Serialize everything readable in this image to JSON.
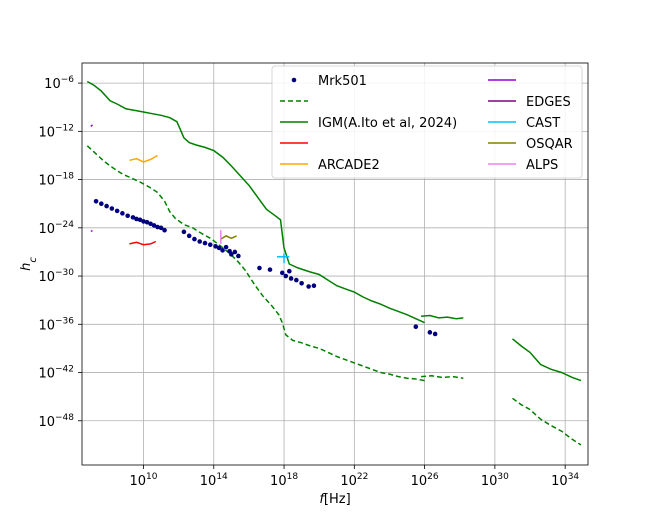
{
  "chart_data": {
    "type": "line",
    "title": "",
    "xlabel": "f[Hz]",
    "xlabel_math": "f",
    "xlabel_unit": "[Hz]",
    "ylabel": "h_c",
    "xscale": "log",
    "yscale": "log",
    "xlim_log10": [
      6.5,
      35.3
    ],
    "ylim_log10": [
      -53.5,
      -3.5
    ],
    "grid": true,
    "legend_position": "top-right",
    "x_ticks": [
      {
        "base": "10",
        "exp": "10",
        "log10": 10
      },
      {
        "base": "10",
        "exp": "14",
        "log10": 14
      },
      {
        "base": "10",
        "exp": "18",
        "log10": 18
      },
      {
        "base": "10",
        "exp": "22",
        "log10": 22
      },
      {
        "base": "10",
        "exp": "26",
        "log10": 26
      },
      {
        "base": "10",
        "exp": "30",
        "log10": 30
      },
      {
        "base": "10",
        "exp": "34",
        "log10": 34
      }
    ],
    "y_ticks": [
      {
        "base": "10",
        "exp": "−6",
        "log10": -6
      },
      {
        "base": "10",
        "exp": "−12",
        "log10": -12
      },
      {
        "base": "10",
        "exp": "−18",
        "log10": -18
      },
      {
        "base": "10",
        "exp": "−24",
        "log10": -24
      },
      {
        "base": "10",
        "exp": "−30",
        "log10": -30
      },
      {
        "base": "10",
        "exp": "−36",
        "log10": -36
      },
      {
        "base": "10",
        "exp": "−42",
        "log10": -42
      },
      {
        "base": "10",
        "exp": "−48",
        "log10": -48
      }
    ],
    "legend": [
      {
        "label": "Mrk501",
        "color": "#000080",
        "style": "dots"
      },
      {
        "label": "",
        "color": "#008000",
        "style": "dashed"
      },
      {
        "label": "IGM(A.Ito et al, 2024)",
        "color": "#008000",
        "style": "solid"
      },
      {
        "label": "",
        "color": "#ff0000",
        "style": "solid"
      },
      {
        "label": "ARCADE2",
        "color": "#ffa500",
        "style": "solid"
      },
      {
        "label": "",
        "color": "#9400d3",
        "style": "solid"
      },
      {
        "label": "EDGES",
        "color": "#800080",
        "style": "solid"
      },
      {
        "label": "CAST",
        "color": "#00bfff",
        "style": "solid"
      },
      {
        "label": "OSQAR",
        "color": "#808000",
        "style": "solid"
      },
      {
        "label": "ALPS",
        "color": "#ee82ee",
        "style": "solid"
      }
    ],
    "series": [
      {
        "name": "IGM upper",
        "color": "#008000",
        "style": "solid",
        "points": [
          [
            6.8,
            -5.8
          ],
          [
            7.2,
            -6.3
          ],
          [
            7.6,
            -7.0
          ],
          [
            8.1,
            -8.2
          ],
          [
            8.5,
            -8.6
          ],
          [
            9.0,
            -9.2
          ],
          [
            9.5,
            -9.4
          ],
          [
            10.0,
            -9.6
          ],
          [
            10.5,
            -9.8
          ],
          [
            11.0,
            -10.0
          ],
          [
            11.5,
            -10.3
          ],
          [
            11.9,
            -10.8
          ],
          [
            12.1,
            -11.8
          ],
          [
            12.3,
            -12.8
          ],
          [
            12.6,
            -13.4
          ],
          [
            13.0,
            -13.7
          ],
          [
            13.5,
            -14.0
          ],
          [
            14.0,
            -14.4
          ],
          [
            14.5,
            -15.2
          ],
          [
            15.0,
            -16.3
          ],
          [
            15.5,
            -17.5
          ],
          [
            16.0,
            -18.7
          ],
          [
            16.5,
            -20.2
          ],
          [
            17.0,
            -21.7
          ],
          [
            17.5,
            -22.5
          ],
          [
            17.8,
            -23.0
          ],
          [
            18.0,
            -26.5
          ],
          [
            18.3,
            -28.5
          ],
          [
            18.8,
            -29.0
          ],
          [
            19.5,
            -29.5
          ],
          [
            20.0,
            -29.8
          ],
          [
            20.5,
            -30.5
          ],
          [
            21.0,
            -31.2
          ],
          [
            21.5,
            -31.6
          ],
          [
            22.0,
            -32.0
          ],
          [
            22.5,
            -32.6
          ],
          [
            23.0,
            -33.1
          ],
          [
            23.5,
            -33.5
          ],
          [
            24.0,
            -34.0
          ],
          [
            24.5,
            -34.4
          ],
          [
            25.0,
            -34.8
          ],
          [
            25.5,
            -35.3
          ],
          [
            25.8,
            -35.6
          ],
          [
            26.0,
            -35.8
          ]
        ]
      },
      {
        "name": "IGM upper (high-f segment 1)",
        "color": "#008000",
        "style": "solid",
        "points": [
          [
            25.8,
            -35.0
          ],
          [
            26.3,
            -34.9
          ],
          [
            26.8,
            -35.2
          ],
          [
            27.3,
            -35.1
          ],
          [
            27.8,
            -35.3
          ],
          [
            28.2,
            -35.2
          ]
        ]
      },
      {
        "name": "IGM upper (high-f segment 2)",
        "color": "#008000",
        "style": "solid",
        "points": [
          [
            31.0,
            -37.8
          ],
          [
            31.5,
            -38.7
          ],
          [
            32.0,
            -39.5
          ],
          [
            32.6,
            -41.0
          ],
          [
            33.2,
            -41.6
          ],
          [
            33.8,
            -42.0
          ],
          [
            34.4,
            -42.6
          ],
          [
            34.9,
            -43.0
          ]
        ]
      },
      {
        "name": "IGM lower",
        "color": "#008000",
        "style": "dashed",
        "points": [
          [
            6.8,
            -13.8
          ],
          [
            7.3,
            -14.8
          ],
          [
            7.8,
            -15.8
          ],
          [
            8.3,
            -16.6
          ],
          [
            8.8,
            -17.3
          ],
          [
            9.3,
            -17.8
          ],
          [
            9.8,
            -18.3
          ],
          [
            10.3,
            -18.9
          ],
          [
            10.8,
            -19.6
          ],
          [
            11.2,
            -20.7
          ],
          [
            11.5,
            -22.0
          ],
          [
            11.8,
            -22.8
          ],
          [
            12.3,
            -23.6
          ],
          [
            12.8,
            -24.0
          ],
          [
            13.3,
            -24.7
          ],
          [
            13.8,
            -25.3
          ],
          [
            14.3,
            -26.1
          ],
          [
            14.8,
            -27.0
          ],
          [
            15.3,
            -28.0
          ],
          [
            15.8,
            -29.3
          ],
          [
            16.3,
            -31.0
          ],
          [
            16.8,
            -32.5
          ],
          [
            17.3,
            -33.7
          ],
          [
            17.7,
            -34.8
          ],
          [
            17.9,
            -35.8
          ],
          [
            18.1,
            -37.3
          ],
          [
            18.5,
            -38.0
          ],
          [
            19.0,
            -38.3
          ],
          [
            19.5,
            -38.7
          ],
          [
            20.0,
            -39.0
          ],
          [
            20.5,
            -39.5
          ],
          [
            21.0,
            -40.0
          ],
          [
            21.5,
            -40.4
          ],
          [
            22.0,
            -40.8
          ],
          [
            22.5,
            -41.2
          ],
          [
            23.0,
            -41.6
          ],
          [
            23.5,
            -42.0
          ],
          [
            24.0,
            -42.2
          ],
          [
            24.5,
            -42.5
          ],
          [
            25.0,
            -42.7
          ],
          [
            25.5,
            -42.8
          ],
          [
            26.0,
            -43.0
          ]
        ]
      },
      {
        "name": "IGM lower (high-f segment 1)",
        "color": "#008000",
        "style": "dashed",
        "points": [
          [
            25.8,
            -42.5
          ],
          [
            26.4,
            -42.4
          ],
          [
            27.0,
            -42.6
          ],
          [
            27.6,
            -42.5
          ],
          [
            28.2,
            -42.7
          ]
        ]
      },
      {
        "name": "IGM lower (high-f segment 2)",
        "color": "#008000",
        "style": "dashed",
        "points": [
          [
            31.0,
            -45.2
          ],
          [
            31.5,
            -46.0
          ],
          [
            32.0,
            -46.6
          ],
          [
            32.6,
            -47.8
          ],
          [
            33.2,
            -48.6
          ],
          [
            33.8,
            -49.3
          ],
          [
            34.4,
            -50.3
          ],
          [
            34.9,
            -51.0
          ]
        ]
      },
      {
        "name": "red",
        "color": "#ff0000",
        "style": "solid",
        "points": [
          [
            9.2,
            -26.0
          ],
          [
            9.6,
            -25.8
          ],
          [
            10.0,
            -26.1
          ],
          [
            10.4,
            -26.0
          ],
          [
            10.7,
            -25.7
          ]
        ]
      },
      {
        "name": "ARCADE2",
        "color": "#ffa500",
        "style": "solid",
        "points": [
          [
            9.2,
            -15.6
          ],
          [
            9.6,
            -15.4
          ],
          [
            10.0,
            -15.8
          ],
          [
            10.4,
            -15.5
          ],
          [
            10.8,
            -15.0
          ]
        ]
      },
      {
        "name": "violet",
        "color": "#9400d3",
        "style": "solid",
        "points": [
          [
            7.0,
            -11.4
          ],
          [
            7.1,
            -11.2
          ]
        ]
      },
      {
        "name": "violet low",
        "color": "#9400d3",
        "style": "solid",
        "points": [
          [
            7.0,
            -24.4
          ],
          [
            7.1,
            -24.4
          ]
        ]
      },
      {
        "name": "CAST",
        "color": "#00bfff",
        "style": "solid",
        "points": [
          [
            17.6,
            -27.6
          ],
          [
            18.3,
            -27.6
          ]
        ]
      },
      {
        "name": "CAST vertical",
        "color": "#00bfff",
        "style": "solid",
        "points": [
          [
            18.0,
            -27.2
          ],
          [
            18.0,
            -28.4
          ]
        ]
      },
      {
        "name": "OSQAR",
        "color": "#808000",
        "style": "solid",
        "points": [
          [
            14.4,
            -25.4
          ],
          [
            14.7,
            -25.0
          ],
          [
            15.0,
            -25.3
          ],
          [
            15.3,
            -25.0
          ]
        ]
      },
      {
        "name": "ALPS",
        "color": "#ee82ee",
        "style": "solid",
        "points": [
          [
            14.4,
            -24.3
          ],
          [
            14.4,
            -26.0
          ]
        ]
      },
      {
        "name": "Mrk501",
        "color": "#000080",
        "style": "dots",
        "points": [
          [
            7.3,
            -20.7
          ],
          [
            7.6,
            -21.0
          ],
          [
            7.9,
            -21.3
          ],
          [
            8.2,
            -21.6
          ],
          [
            8.5,
            -21.9
          ],
          [
            8.8,
            -22.2
          ],
          [
            9.1,
            -22.5
          ],
          [
            9.4,
            -22.7
          ],
          [
            9.6,
            -22.9
          ],
          [
            9.8,
            -23.0
          ],
          [
            10.0,
            -23.2
          ],
          [
            10.2,
            -23.3
          ],
          [
            10.4,
            -23.5
          ],
          [
            10.6,
            -23.7
          ],
          [
            10.8,
            -23.9
          ],
          [
            11.0,
            -24.0
          ],
          [
            11.2,
            -24.3
          ],
          [
            12.3,
            -24.5
          ],
          [
            12.6,
            -25.0
          ],
          [
            12.9,
            -25.4
          ],
          [
            13.2,
            -25.7
          ],
          [
            13.5,
            -25.9
          ],
          [
            13.8,
            -26.1
          ],
          [
            14.1,
            -26.3
          ],
          [
            14.3,
            -26.5
          ],
          [
            14.5,
            -26.8
          ],
          [
            14.7,
            -26.4
          ],
          [
            14.9,
            -26.9
          ],
          [
            15.0,
            -27.3
          ],
          [
            15.2,
            -27.0
          ],
          [
            15.4,
            -27.5
          ],
          [
            16.6,
            -29.0
          ],
          [
            17.2,
            -29.2
          ],
          [
            17.9,
            -29.6
          ],
          [
            18.1,
            -30.0
          ],
          [
            18.3,
            -29.4
          ],
          [
            18.4,
            -30.3
          ],
          [
            18.7,
            -30.5
          ],
          [
            19.0,
            -30.9
          ],
          [
            19.4,
            -31.3
          ],
          [
            19.7,
            -31.2
          ],
          [
            25.5,
            -36.3
          ],
          [
            26.3,
            -37.0
          ],
          [
            26.6,
            -37.2
          ]
        ]
      }
    ]
  }
}
